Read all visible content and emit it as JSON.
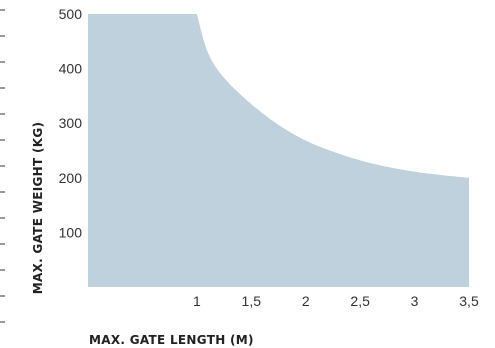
{
  "chart_data": {
    "type": "area",
    "xlabel": "MAX. GATE LENGTH (M)",
    "ylabel": "MAX. GATE WEIGHT (KG)",
    "xlim": [
      0,
      3.5
    ],
    "ylim": [
      0,
      500
    ],
    "x_ticks": [
      "1",
      "1,5",
      "2",
      "2,5",
      "3",
      "3,5"
    ],
    "x_tick_values": [
      1,
      1.5,
      2,
      2.5,
      3,
      3.5
    ],
    "y_ticks": [
      "100",
      "200",
      "300",
      "400",
      "500"
    ],
    "y_tick_values": [
      100,
      200,
      300,
      400,
      500
    ],
    "fill_color": "#bfd1dc",
    "series": [
      {
        "x": [
          0,
          1.0,
          1.1,
          1.25,
          1.5,
          1.75,
          2.0,
          2.25,
          2.5,
          2.75,
          3.0,
          3.25,
          3.5
        ],
        "y": [
          500,
          500,
          430,
          383,
          335,
          297,
          268,
          248,
          232,
          220,
          211,
          205,
          200
        ]
      }
    ]
  }
}
